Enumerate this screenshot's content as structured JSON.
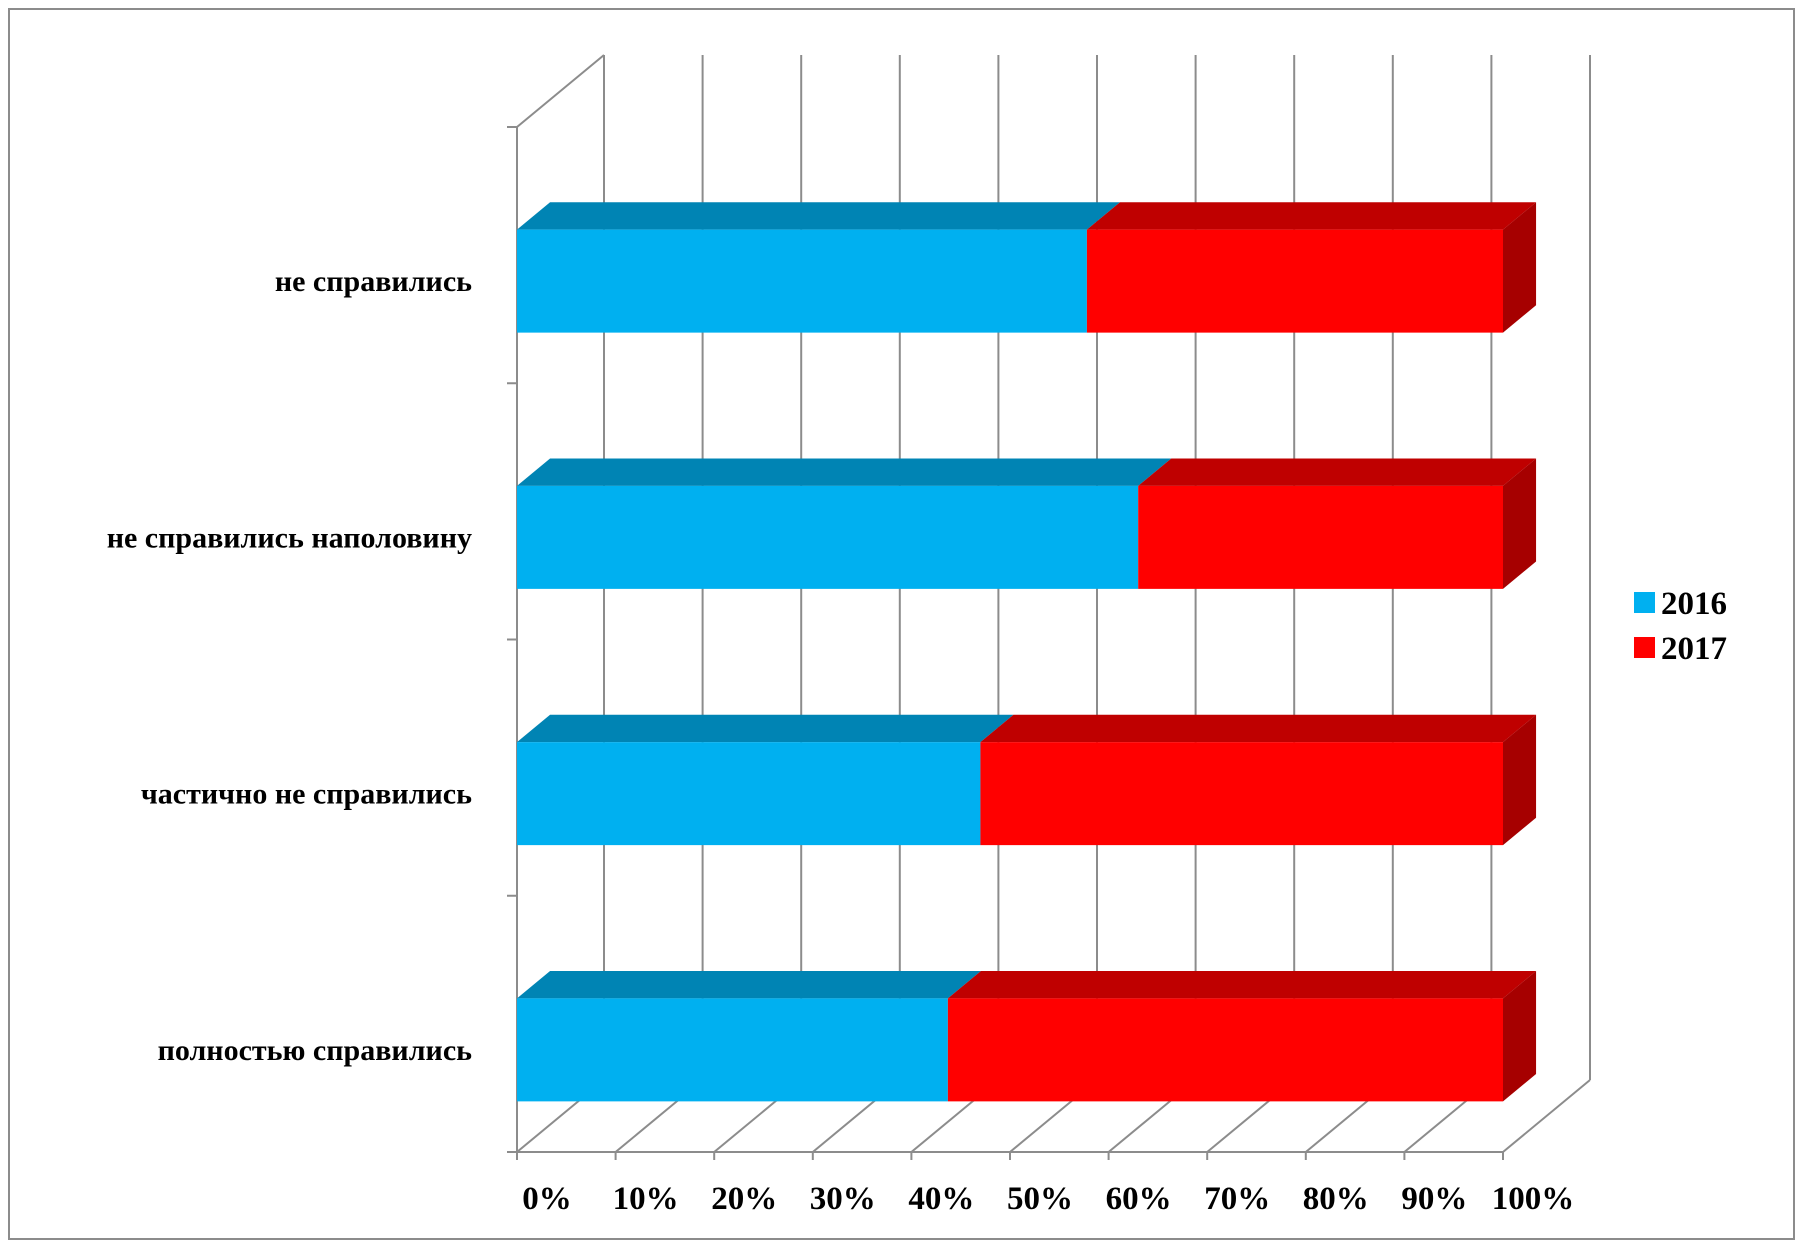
{
  "chart_data": {
    "type": "bar",
    "orientation": "horizontal",
    "stacked": "percent",
    "three_d": true,
    "categories": [
      "полностью справились",
      "частично не справились",
      "не справились наполовину",
      "не справились"
    ],
    "series": [
      {
        "name": "2016",
        "values": [
          43.7,
          47,
          63,
          57.8
        ],
        "color": "#00b0f0"
      },
      {
        "name": "2017",
        "values": [
          56.3,
          53,
          37,
          42.2
        ],
        "color": "#ff0000"
      }
    ],
    "x_ticks": [
      "0%",
      "10%",
      "20%",
      "30%",
      "40%",
      "50%",
      "60%",
      "70%",
      "80%",
      "90%",
      "100%"
    ],
    "xlim": [
      0,
      100
    ],
    "grid": true,
    "legend": "right"
  }
}
